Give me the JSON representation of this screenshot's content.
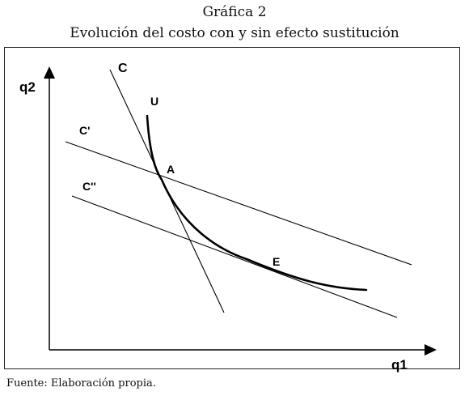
{
  "figure": {
    "number_label": "Gráfica 2",
    "title": "Evolución del costo con y sin efecto sustitución"
  },
  "diagram": {
    "axes": {
      "x_label": "q1",
      "y_label": "q2"
    },
    "curves": {
      "indifference_curve": "U",
      "cost_line_c": "C",
      "cost_line_c_prime": "C'",
      "cost_line_c_double_prime": "C''"
    },
    "points": {
      "tangency_a": "A",
      "tangency_e": "E"
    }
  },
  "source": "Fuente: Elaboración propia."
}
